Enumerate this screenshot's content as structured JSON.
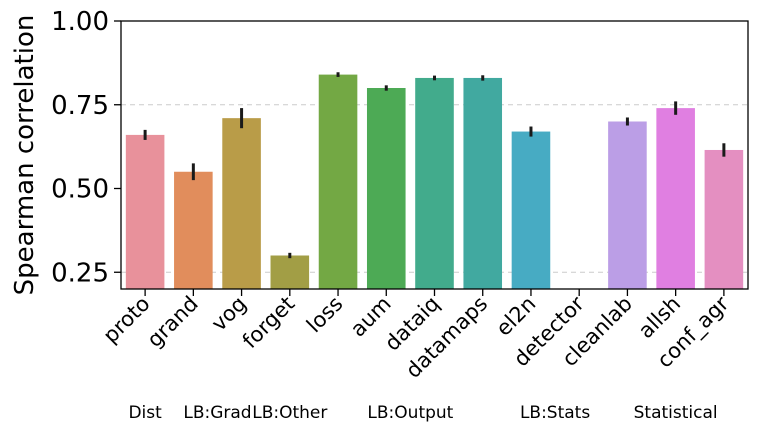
{
  "chart_data": {
    "type": "bar",
    "title": "",
    "xlabel": "",
    "ylabel": "Spearman correlation",
    "ylim": [
      0.2,
      1.0
    ],
    "yticks": [
      0.25,
      0.5,
      0.75,
      1.0
    ],
    "ytick_labels": [
      "0.25",
      "0.50",
      "0.75",
      "1.00"
    ],
    "grid": "horizontal dashed at 0.25 and 0.75",
    "categories": [
      "proto",
      "grand",
      "vog",
      "forget",
      "loss",
      "aum",
      "dataiq",
      "datamaps",
      "el2n",
      "detector",
      "cleanlab",
      "allsh",
      "conf_agr"
    ],
    "values": [
      0.66,
      0.55,
      0.71,
      0.3,
      0.84,
      0.8,
      0.83,
      0.83,
      0.67,
      null,
      0.7,
      0.74,
      0.615
    ],
    "errors": [
      0.015,
      0.025,
      0.03,
      0.008,
      0.007,
      0.008,
      0.007,
      0.008,
      0.015,
      null,
      0.012,
      0.02,
      0.02
    ],
    "colors": [
      "#e8919b",
      "#e18d5c",
      "#b99c48",
      "#a29e45",
      "#73a844",
      "#4daa55",
      "#42ab8c",
      "#41a9a0",
      "#47abc3",
      "#6aa7e0",
      "#bb9ee6",
      "#e07fe1",
      "#e48fc1"
    ],
    "groups": [
      {
        "label": "Dist",
        "from": 0,
        "to": 0
      },
      {
        "label": "LB:Grad",
        "from": 1,
        "to": 2
      },
      {
        "label": "LB:Other",
        "from": 3,
        "to": 3
      },
      {
        "label": "LB:Output",
        "from": 4,
        "to": 7
      },
      {
        "label": "LB:Stats",
        "from": 8,
        "to": 9
      },
      {
        "label": "Statistical",
        "from": 10,
        "to": 12
      }
    ]
  }
}
